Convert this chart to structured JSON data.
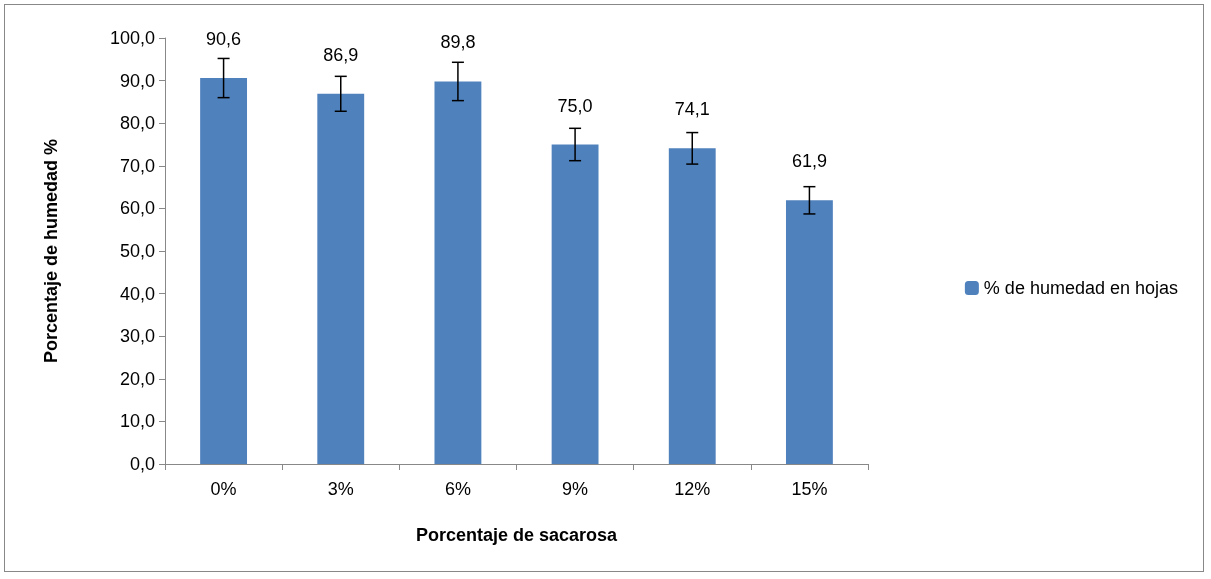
{
  "chart_data": {
    "type": "bar",
    "xlabel": "Porcentaje de sacarosa",
    "ylabel": "Porcentaje de humedad %",
    "categories": [
      "0%",
      "3%",
      "6%",
      "9%",
      "12%",
      "15%"
    ],
    "series": [
      {
        "name": "% de humedad en hojas",
        "color": "#4f81bd",
        "values": [
          90.6,
          86.9,
          89.8,
          75.0,
          74.1,
          61.9
        ],
        "value_labels": [
          "90,6",
          "86,9",
          "89,8",
          "75,0",
          "74,1",
          "61,9"
        ],
        "errors": [
          4.6,
          4.1,
          4.5,
          3.8,
          3.7,
          3.2
        ]
      }
    ],
    "ylim": [
      0,
      100
    ],
    "yticks": [
      {
        "value": 0,
        "label": "0,0"
      },
      {
        "value": 10,
        "label": "10,0"
      },
      {
        "value": 20,
        "label": "20,0"
      },
      {
        "value": 30,
        "label": "30,0"
      },
      {
        "value": 40,
        "label": "40,0"
      },
      {
        "value": 50,
        "label": "50,0"
      },
      {
        "value": 60,
        "label": "60,0"
      },
      {
        "value": 70,
        "label": "70,0"
      },
      {
        "value": 80,
        "label": "80,0"
      },
      {
        "value": 90,
        "label": "90,0"
      },
      {
        "value": 100,
        "label": "100,0"
      }
    ],
    "grid": false,
    "legend": "right"
  }
}
